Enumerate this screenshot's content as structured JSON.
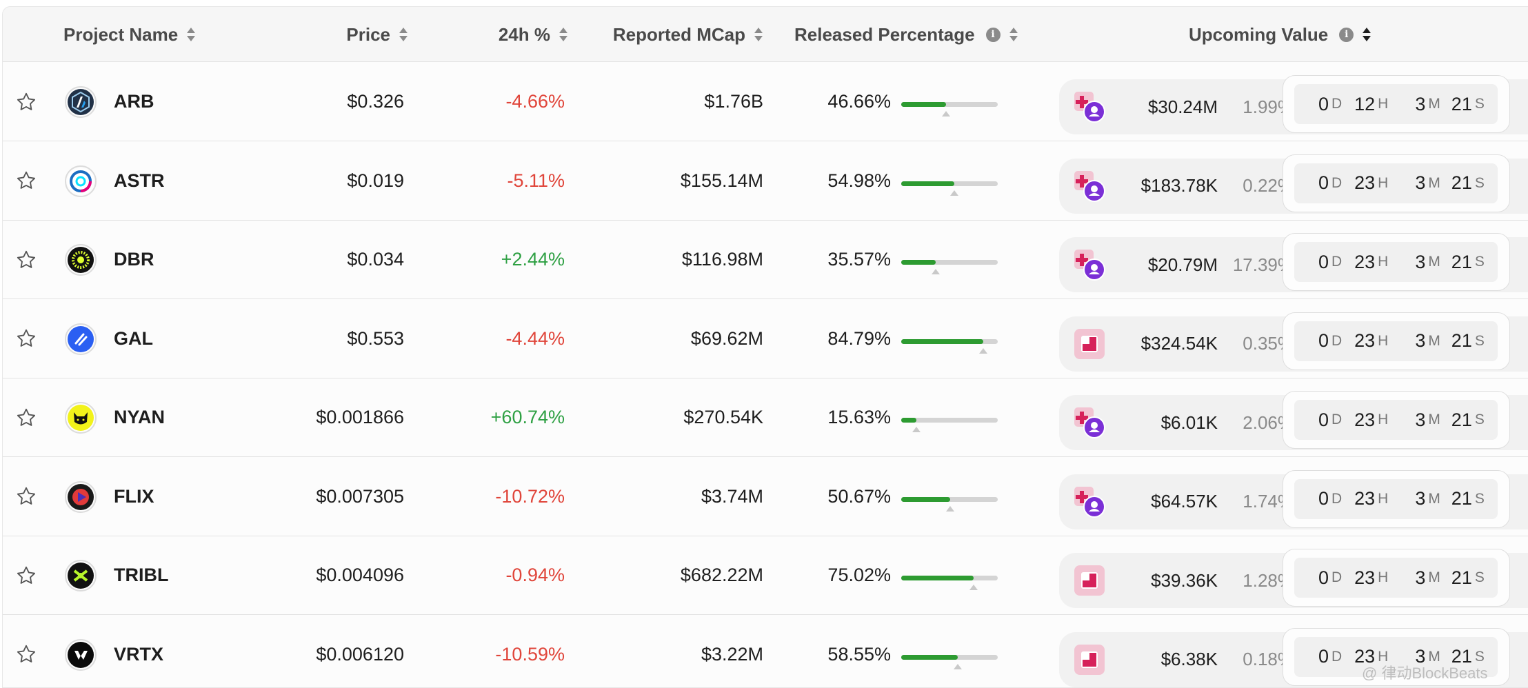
{
  "header": {
    "project_name": "Project Name",
    "price": "Price",
    "change_24h": "24h %",
    "reported_mcap": "Reported MCap",
    "released_percentage": "Released Percentage",
    "upcoming_value": "Upcoming Value",
    "info_glyph": "i"
  },
  "colors": {
    "negative": "#e0453a",
    "positive": "#2ea043",
    "bar_fill": "#2d9b31",
    "bar_track": "#d4d4d4"
  },
  "countdown_units": {
    "days": "D",
    "hours": "H",
    "minutes": "M",
    "seconds": "S"
  },
  "rows": [
    {
      "symbol": "ARB",
      "price": "$0.326",
      "change": "-4.66%",
      "change_dir": "neg",
      "mcap": "$1.76B",
      "released": "46.66%",
      "released_value": 0.4666,
      "upcoming_value": "$30.24M",
      "upcoming_pct": "1.99%",
      "unlock_type": "mixed",
      "days": "0",
      "hours": "12",
      "minutes": "3",
      "seconds": "21",
      "logo_icon": "arbitrum-logo-icon"
    },
    {
      "symbol": "ASTR",
      "price": "$0.019",
      "change": "-5.11%",
      "change_dir": "neg",
      "mcap": "$155.14M",
      "released": "54.98%",
      "released_value": 0.5498,
      "upcoming_value": "$183.78K",
      "upcoming_pct": "0.22%",
      "unlock_type": "mixed",
      "days": "0",
      "hours": "23",
      "minutes": "3",
      "seconds": "21",
      "logo_icon": "astar-logo-icon"
    },
    {
      "symbol": "DBR",
      "price": "$0.034",
      "change": "+2.44%",
      "change_dir": "pos",
      "mcap": "$116.98M",
      "released": "35.57%",
      "released_value": 0.3557,
      "upcoming_value": "$20.79M",
      "upcoming_pct": "17.39%",
      "unlock_type": "mixed",
      "days": "0",
      "hours": "23",
      "minutes": "3",
      "seconds": "21",
      "logo_icon": "debridge-logo-icon"
    },
    {
      "symbol": "GAL",
      "price": "$0.553",
      "change": "-4.44%",
      "change_dir": "neg",
      "mcap": "$69.62M",
      "released": "84.79%",
      "released_value": 0.8479,
      "upcoming_value": "$324.54K",
      "upcoming_pct": "0.35%",
      "unlock_type": "single",
      "days": "0",
      "hours": "23",
      "minutes": "3",
      "seconds": "21",
      "logo_icon": "galxe-logo-icon"
    },
    {
      "symbol": "NYAN",
      "price": "$0.001866",
      "change": "+60.74%",
      "change_dir": "pos",
      "mcap": "$270.54K",
      "released": "15.63%",
      "released_value": 0.1563,
      "upcoming_value": "$6.01K",
      "upcoming_pct": "2.06%",
      "unlock_type": "mixed",
      "days": "0",
      "hours": "23",
      "minutes": "3",
      "seconds": "21",
      "logo_icon": "nyan-logo-icon"
    },
    {
      "symbol": "FLIX",
      "price": "$0.007305",
      "change": "-10.72%",
      "change_dir": "neg",
      "mcap": "$3.74M",
      "released": "50.67%",
      "released_value": 0.5067,
      "upcoming_value": "$64.57K",
      "upcoming_pct": "1.74%",
      "unlock_type": "mixed",
      "days": "0",
      "hours": "23",
      "minutes": "3",
      "seconds": "21",
      "logo_icon": "omniflix-logo-icon"
    },
    {
      "symbol": "TRIBL",
      "price": "$0.004096",
      "change": "-0.94%",
      "change_dir": "neg",
      "mcap": "$682.22M",
      "released": "75.02%",
      "released_value": 0.7502,
      "upcoming_value": "$39.36K",
      "upcoming_pct": "1.28%",
      "unlock_type": "single",
      "days": "0",
      "hours": "23",
      "minutes": "3",
      "seconds": "21",
      "logo_icon": "tribl-logo-icon"
    },
    {
      "symbol": "VRTX",
      "price": "$0.006120",
      "change": "-10.59%",
      "change_dir": "neg",
      "mcap": "$3.22M",
      "released": "58.55%",
      "released_value": 0.5855,
      "upcoming_value": "$6.38K",
      "upcoming_pct": "0.18%",
      "unlock_type": "single",
      "days": "0",
      "hours": "23",
      "minutes": "3",
      "seconds": "21",
      "logo_icon": "vertex-logo-icon"
    }
  ],
  "watermark": "@ 律动BlockBeats"
}
